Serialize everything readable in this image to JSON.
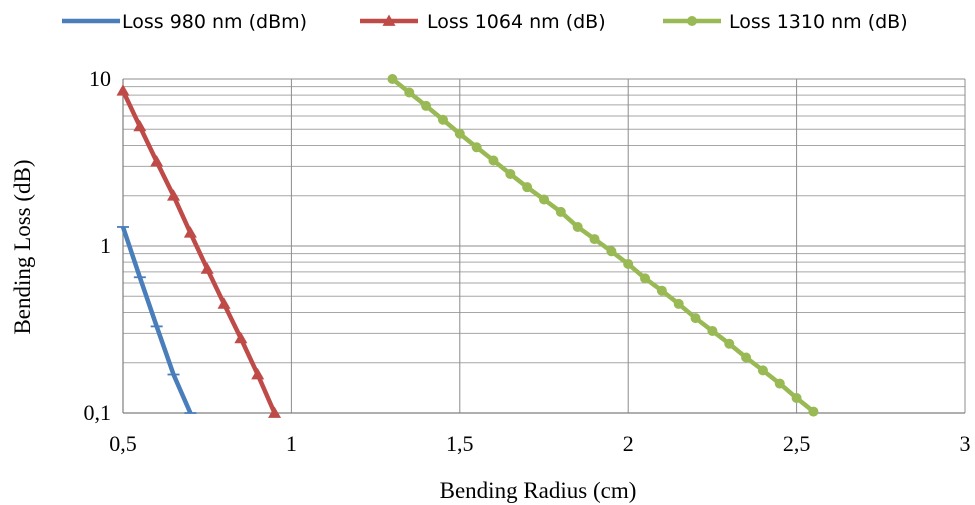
{
  "chart_data": {
    "type": "line",
    "title": "",
    "xlabel": "Bending Radius (cm)",
    "ylabel": "Bending Loss (dB)",
    "xlim": [
      0.5,
      3
    ],
    "ylim": [
      0.1,
      10
    ],
    "y_scale": "log",
    "grid": true,
    "legend_position": "top",
    "x_ticks": [
      "0,5",
      "1",
      "1,5",
      "2",
      "2,5",
      "3"
    ],
    "y_ticks": [
      "0,1",
      "1",
      "10"
    ],
    "series": [
      {
        "name": "Loss 980 nm (dBm)",
        "color": "#4a7ebb",
        "marker": "dash",
        "x": [
          0.5,
          0.55,
          0.6,
          0.65,
          0.7
        ],
        "y": [
          1.3,
          0.65,
          0.33,
          0.17,
          0.1
        ]
      },
      {
        "name": "Loss 1064 nm (dB)",
        "color": "#be4b48",
        "marker": "triangle",
        "x": [
          0.5,
          0.55,
          0.6,
          0.65,
          0.7,
          0.75,
          0.8,
          0.85,
          0.9,
          0.95
        ],
        "y": [
          8.5,
          5.2,
          3.2,
          2.0,
          1.2,
          0.73,
          0.45,
          0.28,
          0.17,
          0.1
        ]
      },
      {
        "name": "Loss 1310 nm (dB)",
        "color": "#98b954",
        "marker": "circle",
        "x": [
          1.3,
          1.35,
          1.4,
          1.45,
          1.5,
          1.55,
          1.6,
          1.65,
          1.7,
          1.75,
          1.8,
          1.85,
          1.9,
          1.95,
          2.0,
          2.05,
          2.1,
          2.15,
          2.2,
          2.25,
          2.3,
          2.35,
          2.4,
          2.45,
          2.5,
          2.55
        ],
        "y": [
          10.0,
          8.3,
          6.9,
          5.7,
          4.7,
          3.9,
          3.25,
          2.7,
          2.25,
          1.9,
          1.6,
          1.3,
          1.1,
          0.93,
          0.78,
          0.64,
          0.54,
          0.45,
          0.37,
          0.31,
          0.26,
          0.215,
          0.18,
          0.15,
          0.123,
          0.102
        ]
      }
    ]
  }
}
